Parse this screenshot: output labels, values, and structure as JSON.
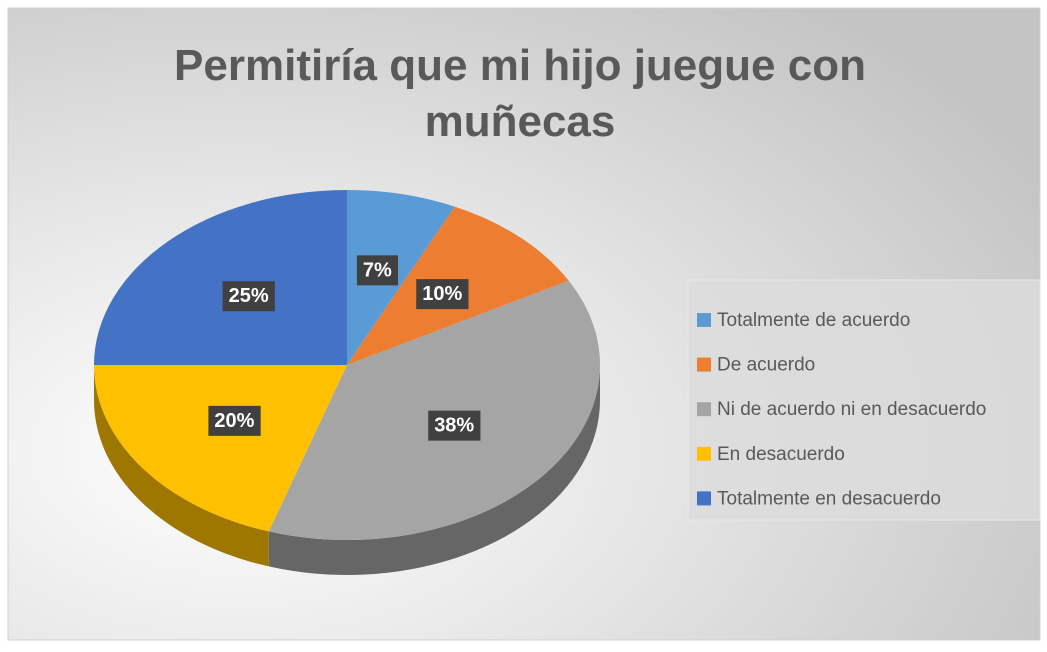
{
  "chart_data": {
    "type": "pie",
    "title": "Permitiría que mi hijo juegue con muñecas",
    "categories": [
      "Totalmente de acuerdo",
      "De acuerdo",
      "Ni de acuerdo ni en desacuerdo",
      "En desacuerdo",
      "Totalmente en desacuerdo"
    ],
    "values": [
      7,
      10,
      38,
      20,
      25
    ],
    "value_labels": [
      "7%",
      "10%",
      "38%",
      "20%",
      "25%"
    ],
    "colors": [
      "#5b9bd5",
      "#ed7d31",
      "#a5a5a5",
      "#ffc000",
      "#4472c4"
    ],
    "legend": "right"
  }
}
